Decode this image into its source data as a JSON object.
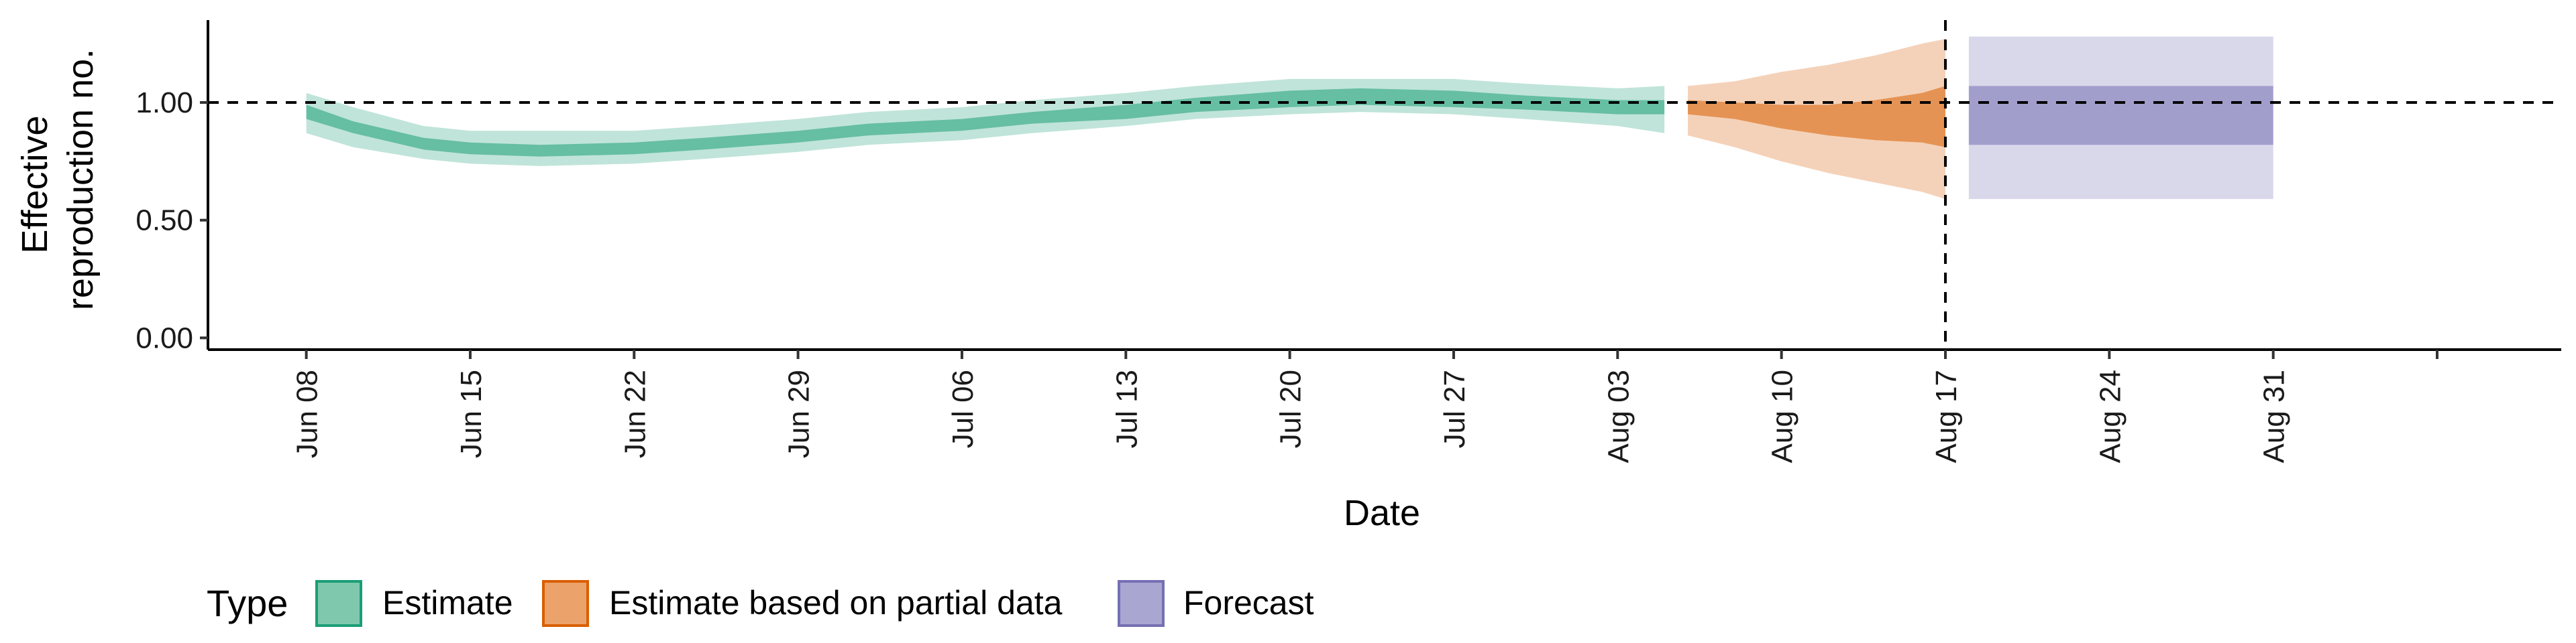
{
  "chart_data": {
    "type": "area",
    "xlabel": "Date",
    "ylabel_lines": [
      "Effective",
      "reproduction no."
    ],
    "x_range_day": [
      -4.2,
      96.3
    ],
    "ylim": [
      -0.05,
      1.35
    ],
    "yticks": [
      0,
      0.5,
      1,
      1.5
    ],
    "ytick_labels": [
      "0.00",
      "0.50",
      "1.00",
      ""
    ],
    "xtick_days": [
      0,
      7,
      14,
      21,
      28,
      35,
      42,
      49,
      56,
      63,
      70,
      77,
      84,
      91
    ],
    "xtick_labels": [
      "Jun 08",
      "Jun 15",
      "Jun 22",
      "Jun 29",
      "Jul 06",
      "Jul 13",
      "Jul 20",
      "Jul 27",
      "Aug 03",
      "Aug 10",
      "Aug 17",
      "Aug 24",
      "Aug 31",
      ""
    ],
    "reference_line_y": 1.0,
    "forecast_start_day": 70,
    "legend": {
      "title": "Type",
      "items": [
        {
          "label": "Estimate",
          "fill": "#7fc8ad",
          "stroke": "#1b9e77"
        },
        {
          "label": "Estimate based on partial data",
          "fill": "#eca26b",
          "stroke": "#d95f02"
        },
        {
          "label": "Forecast",
          "fill": "#aaa6d2",
          "stroke": "#7570b3"
        }
      ]
    },
    "series": [
      {
        "name": "Estimate",
        "color": "#1b9e77",
        "day": [
          0,
          2,
          5,
          7,
          10,
          14,
          17,
          21,
          24,
          28,
          31,
          35,
          38,
          42,
          45,
          49,
          52,
          56,
          58
        ],
        "median": [
          0.96,
          0.9,
          0.83,
          0.81,
          0.8,
          0.8,
          0.82,
          0.85,
          0.88,
          0.9,
          0.93,
          0.96,
          0.99,
          1.02,
          1.03,
          1.02,
          1.0,
          0.98,
          0.98
        ],
        "inner_lower": [
          0.93,
          0.87,
          0.8,
          0.78,
          0.77,
          0.78,
          0.8,
          0.83,
          0.86,
          0.88,
          0.91,
          0.93,
          0.96,
          0.98,
          0.99,
          0.98,
          0.97,
          0.95,
          0.95
        ],
        "inner_upper": [
          0.99,
          0.92,
          0.85,
          0.83,
          0.82,
          0.83,
          0.85,
          0.88,
          0.91,
          0.93,
          0.96,
          0.99,
          1.02,
          1.05,
          1.06,
          1.05,
          1.03,
          1.01,
          1.01
        ],
        "outer_lower": [
          0.87,
          0.81,
          0.76,
          0.74,
          0.73,
          0.74,
          0.76,
          0.79,
          0.82,
          0.84,
          0.87,
          0.9,
          0.93,
          0.95,
          0.96,
          0.95,
          0.93,
          0.9,
          0.87
        ],
        "outer_upper": [
          1.04,
          0.98,
          0.9,
          0.88,
          0.88,
          0.88,
          0.9,
          0.93,
          0.96,
          0.98,
          1.01,
          1.04,
          1.07,
          1.1,
          1.1,
          1.1,
          1.08,
          1.06,
          1.07
        ]
      },
      {
        "name": "Estimate based on partial data",
        "color": "#d95f02",
        "day": [
          59,
          61,
          63,
          65,
          67,
          69,
          70
        ],
        "median": [
          0.98,
          0.97,
          0.95,
          0.93,
          0.92,
          0.91,
          0.91
        ],
        "inner_lower": [
          0.95,
          0.93,
          0.89,
          0.86,
          0.84,
          0.83,
          0.81
        ],
        "inner_upper": [
          1.01,
          1.0,
          0.99,
          0.99,
          1.01,
          1.04,
          1.07
        ],
        "outer_lower": [
          0.86,
          0.81,
          0.75,
          0.7,
          0.66,
          0.62,
          0.59
        ],
        "outer_upper": [
          1.07,
          1.09,
          1.13,
          1.16,
          1.2,
          1.25,
          1.27
        ]
      },
      {
        "name": "Forecast",
        "color": "#7570b3",
        "day": [
          71,
          84
        ],
        "median": [
          0.95,
          0.95
        ],
        "inner_lower": [
          0.82,
          0.82
        ],
        "inner_upper": [
          1.07,
          1.07
        ],
        "outer_lower": [
          0.59,
          0.59
        ],
        "outer_upper": [
          1.28,
          1.28
        ]
      }
    ]
  }
}
